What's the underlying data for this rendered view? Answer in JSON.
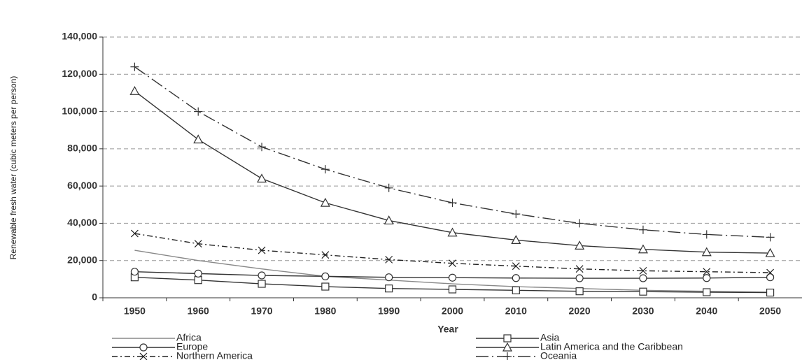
{
  "chart_data": {
    "type": "line",
    "x_label": "Year",
    "y_label": "Renewable fresh water (cubic meters per person)",
    "categories": [
      "1950",
      "1960",
      "1970",
      "1980",
      "1990",
      "2000",
      "2010",
      "2020",
      "2030",
      "2040",
      "2050"
    ],
    "ylim": [
      0,
      140000
    ],
    "yticks": [
      0,
      {
        "value": 20000,
        "label": "20,000"
      },
      {
        "value": 40000,
        "label": "40,000"
      },
      {
        "value": 60000,
        "label": "60,000"
      },
      {
        "value": 80000,
        "label": "80,000"
      },
      {
        "value": 100000,
        "label": "100,000"
      },
      {
        "value": 120000,
        "label": "120,000"
      },
      {
        "value": 140000,
        "label": "140,000"
      }
    ],
    "grid": true,
    "legend": "bottom",
    "series": [
      {
        "name": "Africa",
        "color": "#888888",
        "marker": "none",
        "dash": "solid",
        "values": [
          25500,
          20000,
          15500,
          11500,
          9500,
          7500,
          6000,
          5000,
          4000,
          3500,
          3000
        ]
      },
      {
        "name": "Asia",
        "color": "#333333",
        "marker": "square",
        "dash": "solid",
        "values": [
          11000,
          9500,
          7500,
          6000,
          5000,
          4500,
          4000,
          3500,
          3300,
          3000,
          2800
        ]
      },
      {
        "name": "Europe",
        "color": "#333333",
        "marker": "circle",
        "dash": "solid",
        "values": [
          14000,
          13000,
          12000,
          11500,
          11000,
          10800,
          10600,
          10500,
          10500,
          10600,
          11000
        ]
      },
      {
        "name": "Latin America and the Caribbean",
        "color": "#333333",
        "marker": "triangle",
        "dash": "solid",
        "values": [
          111000,
          85000,
          64000,
          51000,
          41500,
          35000,
          31000,
          28000,
          26000,
          24500,
          24000
        ]
      },
      {
        "name": "Northern America",
        "color": "#222222",
        "marker": "x",
        "dash": "dashdot",
        "values": [
          34500,
          29000,
          25500,
          23000,
          20500,
          18500,
          17000,
          15500,
          14500,
          14000,
          13500
        ]
      },
      {
        "name": "Oceania",
        "color": "#333333",
        "marker": "plus",
        "dash": "longdash",
        "values": [
          124000,
          100000,
          81000,
          69000,
          59000,
          51000,
          45000,
          40000,
          36500,
          34000,
          32500
        ]
      }
    ]
  }
}
